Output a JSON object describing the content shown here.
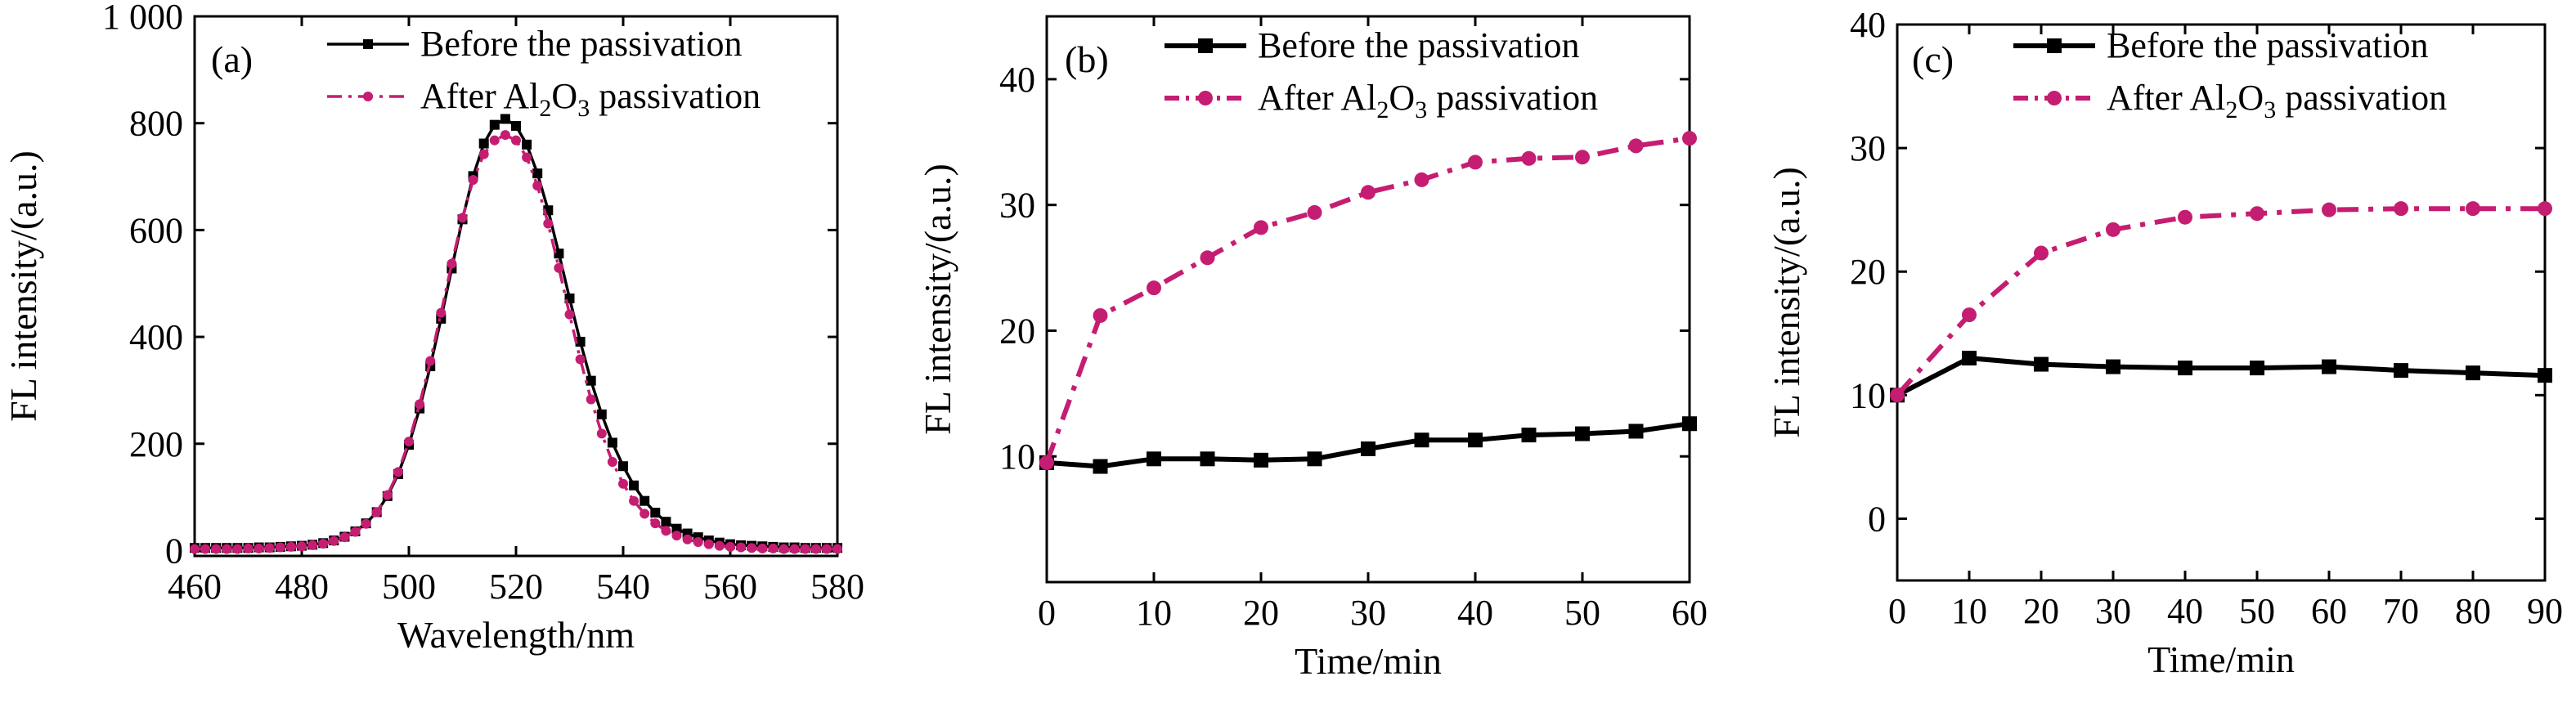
{
  "colors": {
    "before": "#000000",
    "after": "#c51d72",
    "axis": "#000000"
  },
  "chart_data": [
    {
      "type": "line",
      "panel_label": "(a)",
      "xlabel": "Wavelength/nm",
      "ylabel": "FL intensity/(a.u.)",
      "xlim": [
        460,
        580
      ],
      "ylim": [
        -10,
        1000
      ],
      "xticks": [
        460,
        480,
        500,
        520,
        540,
        560,
        580
      ],
      "xtick_labels": [
        "460",
        "480",
        "500",
        "520",
        "540",
        "560",
        "580"
      ],
      "yticks": [
        0,
        200,
        400,
        600,
        800,
        1000
      ],
      "ytick_labels": [
        "0",
        "200",
        "400",
        "600",
        "800",
        "1 000"
      ],
      "series": [
        {
          "name": "Before the passivation",
          "legend": [
            "Before the passivation"
          ],
          "style": "solid",
          "marker": "square",
          "x": [
            460,
            462,
            464,
            466,
            468,
            470,
            472,
            474,
            476,
            478,
            480,
            482,
            484,
            486,
            488,
            490,
            492,
            494,
            496,
            498,
            500,
            502,
            504,
            506,
            508,
            510,
            512,
            514,
            516,
            518,
            520,
            522,
            524,
            526,
            528,
            530,
            532,
            534,
            536,
            538,
            540,
            542,
            544,
            546,
            548,
            550,
            552,
            554,
            556,
            558,
            560,
            562,
            564,
            566,
            568,
            570,
            572,
            574,
            576,
            578,
            580
          ],
          "y": [
            5,
            5,
            5,
            5,
            5,
            5,
            6,
            6,
            7,
            8,
            9,
            11,
            14,
            19,
            26,
            36,
            51,
            72,
            102,
            143,
            198,
            266,
            345,
            434,
            528,
            620,
            701,
            762,
            797,
            808,
            795,
            760,
            706,
            637,
            556,
            472,
            391,
            318,
            255,
            202,
            158,
            122,
            93,
            71,
            54,
            41,
            32,
            25,
            19,
            15,
            12,
            10,
            9,
            8,
            7,
            6,
            6,
            5,
            5,
            5,
            5
          ]
        },
        {
          "name": "After Al2O3 passivation",
          "legend": [
            "After Al",
            "2",
            "O",
            "3",
            " passivation"
          ],
          "style": "dashdot",
          "marker": "circle",
          "x": [
            460,
            462,
            464,
            466,
            468,
            470,
            472,
            474,
            476,
            478,
            480,
            482,
            484,
            486,
            488,
            490,
            492,
            494,
            496,
            498,
            500,
            502,
            504,
            506,
            508,
            510,
            512,
            514,
            516,
            518,
            520,
            522,
            524,
            526,
            528,
            530,
            532,
            534,
            536,
            538,
            540,
            542,
            544,
            546,
            548,
            550,
            552,
            554,
            556,
            558,
            560,
            562,
            564,
            566,
            568,
            570,
            572,
            574,
            576,
            578,
            580
          ],
          "y": [
            3,
            3,
            3,
            3,
            3,
            4,
            4,
            5,
            6,
            7,
            8,
            10,
            13,
            18,
            25,
            35,
            50,
            72,
            104,
            147,
            204,
            274,
            355,
            445,
            537,
            623,
            694,
            742,
            768,
            778,
            768,
            736,
            683,
            612,
            529,
            442,
            358,
            283,
            219,
            166,
            125,
            93,
            69,
            51,
            37,
            28,
            21,
            16,
            12,
            9,
            7,
            6,
            5,
            4,
            4,
            3,
            3,
            3,
            3,
            3,
            3
          ]
        }
      ]
    },
    {
      "type": "line",
      "panel_label": "(b)",
      "xlabel": "Time/min",
      "ylabel": "FL intensity/(a.u.)",
      "xlim": [
        0,
        60
      ],
      "ylim": [
        0,
        45
      ],
      "xticks": [
        0,
        10,
        20,
        30,
        40,
        50,
        60
      ],
      "xtick_labels": [
        "0",
        "10",
        "20",
        "30",
        "40",
        "50",
        "60"
      ],
      "yticks": [
        10,
        20,
        30,
        40
      ],
      "ytick_labels": [
        "10",
        "20",
        "30",
        "40"
      ],
      "series": [
        {
          "name": "Before the passivation",
          "legend": [
            "Before the passivation"
          ],
          "style": "solid",
          "marker": "square",
          "x": [
            0,
            5,
            10,
            15,
            20,
            25,
            30,
            35,
            40,
            45,
            50,
            55,
            60
          ],
          "y": [
            9.5,
            9.2,
            9.8,
            9.8,
            9.7,
            9.8,
            10.6,
            11.3,
            11.3,
            11.7,
            11.8,
            12.0,
            12.6
          ]
        },
        {
          "name": "After Al2O3 passivation",
          "legend": [
            "After Al",
            "2",
            "O",
            "3",
            " passivation"
          ],
          "style": "dashdot",
          "marker": "circle",
          "x": [
            0,
            5,
            10,
            15,
            20,
            25,
            30,
            35,
            40,
            45,
            50,
            55,
            60
          ],
          "y": [
            9.5,
            21.2,
            23.4,
            25.8,
            28.2,
            29.4,
            31.0,
            32.0,
            33.4,
            33.7,
            33.8,
            34.7,
            35.3
          ]
        }
      ]
    },
    {
      "type": "line",
      "panel_label": "(c)",
      "xlabel": "Time/min",
      "ylabel": "FL intensity/(a.u.)",
      "xlim": [
        0,
        90
      ],
      "ylim": [
        -5,
        40
      ],
      "xticks": [
        0,
        10,
        20,
        30,
        40,
        50,
        60,
        70,
        80,
        90
      ],
      "xtick_labels": [
        "0",
        "10",
        "20",
        "30",
        "40",
        "50",
        "60",
        "70",
        "80",
        "90"
      ],
      "yticks": [
        0,
        10,
        20,
        30,
        40
      ],
      "ytick_labels": [
        "0",
        "10",
        "20",
        "30",
        "40"
      ],
      "series": [
        {
          "name": "Before the passivation",
          "legend": [
            "Before the passivation"
          ],
          "style": "solid",
          "marker": "square",
          "x": [
            0,
            10,
            20,
            30,
            40,
            50,
            60,
            70,
            80,
            90
          ],
          "y": [
            10,
            13.0,
            12.5,
            12.3,
            12.2,
            12.2,
            12.3,
            12.0,
            11.8,
            11.6
          ]
        },
        {
          "name": "After Al2O3 passivation",
          "legend": [
            "After Al",
            "2",
            "O",
            "3",
            " passivation"
          ],
          "style": "dashdot",
          "marker": "circle",
          "x": [
            0,
            10,
            20,
            30,
            40,
            50,
            60,
            70,
            80,
            90
          ],
          "y": [
            10,
            16.5,
            21.5,
            23.4,
            24.4,
            24.7,
            25.0,
            25.1,
            25.1,
            25.1
          ]
        }
      ]
    }
  ]
}
